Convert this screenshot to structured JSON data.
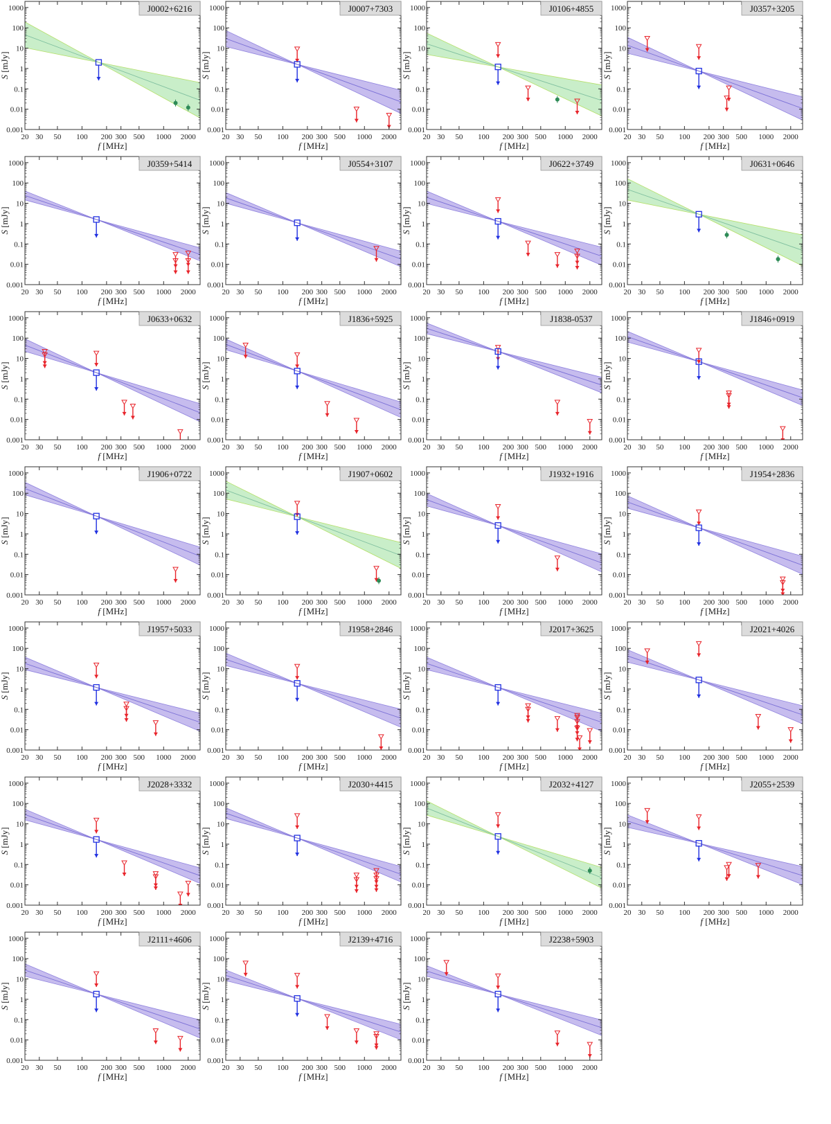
{
  "chart_data": {
    "type": "scatter",
    "layout": "grid",
    "axes": {
      "x_scale": "log",
      "y_scale": "log",
      "xlim": [
        20,
        2800
      ],
      "ylim": [
        0.001,
        2000
      ],
      "x_ticks": [
        20,
        30,
        50,
        100,
        200,
        300,
        500,
        1000,
        2000
      ],
      "x_tick_labels": [
        "20",
        "30",
        "50",
        "100",
        "200",
        "300",
        "500",
        "1000",
        "2000"
      ],
      "y_ticks": [
        0.001,
        0.01,
        0.1,
        1,
        10,
        100,
        1000
      ],
      "y_tick_labels": [
        "0.001",
        "0.01",
        "0.1",
        "1",
        "10",
        "100",
        "1000"
      ],
      "xlabel_var": "f",
      "xlabel_unit": "[MHz]",
      "ylabel_var": "S",
      "ylabel_unit": "[mJy]"
    },
    "colors": {
      "purple_fill": "#b3a6e8",
      "purple_edge": "#8f82de",
      "purple_line": "#7b70d6",
      "green_fill": "#b7e8b7",
      "green_edge": "#b5e06a",
      "green_line": "#7fbf9f",
      "limit_red": "#e8232a",
      "lofar_blue": "#1f2fe0",
      "detection_green": "#2e8b57",
      "label_bg": "#dcdcdc"
    },
    "panels": [
      {
        "name": "J0002+6216",
        "band": "green",
        "anchor": [
          160,
          2.0
        ],
        "slope_lo": -0.8,
        "slope_hi": -2.2,
        "limits": [],
        "detections": [
          [
            1400,
            0.02
          ],
          [
            2000,
            0.012
          ]
        ],
        "lofar": 2.0
      },
      {
        "name": "J0007+7303",
        "band": "purple",
        "anchor": [
          150,
          1.6
        ],
        "slope_lo": -1.0,
        "slope_hi": -1.9,
        "limits": [
          [
            150,
            9
          ],
          [
            800,
            0.01
          ],
          [
            2000,
            0.005
          ]
        ],
        "detections": [],
        "lofar": 1.6
      },
      {
        "name": "J0106+4855",
        "band": "green",
        "anchor": [
          150,
          1.2
        ],
        "slope_lo": -0.7,
        "slope_hi": -1.9,
        "limits": [
          [
            150,
            15
          ],
          [
            350,
            0.11
          ],
          [
            1400,
            0.025
          ]
        ],
        "detections": [
          [
            800,
            0.03
          ]
        ],
        "lofar": 1.2
      },
      {
        "name": "J0357+3205",
        "band": "purple",
        "anchor": [
          150,
          0.75
        ],
        "slope_lo": -1.0,
        "slope_hi": -1.9,
        "limits": [
          [
            35,
            30
          ],
          [
            150,
            12
          ],
          [
            330,
            0.035
          ],
          [
            350,
            0.11
          ]
        ],
        "detections": [],
        "lofar": 0.75
      },
      {
        "name": "J0359+5414",
        "band": "purple",
        "anchor": [
          150,
          1.6
        ],
        "slope_lo": -1.1,
        "slope_hi": -1.6,
        "limits": [
          [
            1400,
            0.03
          ],
          [
            1400,
            0.015
          ],
          [
            2000,
            0.035
          ],
          [
            2000,
            0.015
          ]
        ],
        "detections": [],
        "lofar": 1.6
      },
      {
        "name": "J0554+3107",
        "band": "purple",
        "anchor": [
          150,
          1.1
        ],
        "slope_lo": -1.1,
        "slope_hi": -1.7,
        "limits": [
          [
            1400,
            0.06
          ]
        ],
        "detections": [],
        "lofar": 1.1
      },
      {
        "name": "J0622+3749",
        "band": "purple",
        "anchor": [
          150,
          1.3
        ],
        "slope_lo": -1.0,
        "slope_hi": -1.7,
        "limits": [
          [
            150,
            15
          ],
          [
            350,
            0.11
          ],
          [
            800,
            0.03
          ],
          [
            1400,
            0.045
          ],
          [
            1400,
            0.025
          ]
        ],
        "detections": [],
        "lofar": 1.3
      },
      {
        "name": "J0631+0646",
        "band": "green",
        "anchor": [
          150,
          2.9
        ],
        "slope_lo": -0.8,
        "slope_hi": -2.0,
        "limits": [],
        "detections": [
          [
            330,
            0.28
          ],
          [
            1400,
            0.018
          ]
        ],
        "lofar": 2.9
      },
      {
        "name": "J0633+0632",
        "band": "purple",
        "anchor": [
          150,
          2.0
        ],
        "slope_lo": -1.2,
        "slope_hi": -1.9,
        "limits": [
          [
            35,
            22
          ],
          [
            35,
            15
          ],
          [
            150,
            18
          ],
          [
            330,
            0.07
          ],
          [
            420,
            0.045
          ],
          [
            1600,
            0.0025
          ]
        ],
        "detections": [],
        "lofar": 2.0
      },
      {
        "name": "J1836+5925",
        "band": "purple",
        "anchor": [
          150,
          2.4
        ],
        "slope_lo": -1.2,
        "slope_hi": -1.8,
        "limits": [
          [
            35,
            45
          ],
          [
            150,
            15
          ],
          [
            350,
            0.06
          ],
          [
            800,
            0.009
          ]
        ],
        "detections": [],
        "lofar": 2.4
      },
      {
        "name": "J1838-0537",
        "band": "purple",
        "anchor": [
          150,
          22
        ],
        "slope_lo": -1.0,
        "slope_hi": -1.6,
        "limits": [
          [
            150,
            35
          ],
          [
            800,
            0.07
          ],
          [
            2000,
            0.008
          ]
        ],
        "detections": [],
        "lofar": 22
      },
      {
        "name": "J1846+0919",
        "band": "purple",
        "anchor": [
          150,
          7
        ],
        "slope_lo": -1.1,
        "slope_hi": -1.7,
        "limits": [
          [
            150,
            25
          ],
          [
            350,
            0.2
          ],
          [
            350,
            0.15
          ],
          [
            1600,
            0.0035
          ]
        ],
        "detections": [],
        "lofar": 7
      },
      {
        "name": "J1906+0722",
        "band": "purple",
        "anchor": [
          150,
          7.5
        ],
        "slope_lo": -1.2,
        "slope_hi": -1.9,
        "limits": [
          [
            1400,
            0.018
          ]
        ],
        "detections": [],
        "lofar": 7.5
      },
      {
        "name": "J1907+0602",
        "band": "green",
        "anchor": [
          150,
          7.0
        ],
        "slope_lo": -1.0,
        "slope_hi": -2.0,
        "limits": [
          [
            150,
            32
          ],
          [
            1400,
            0.02
          ]
        ],
        "detections": [
          [
            1500,
            0.005
          ]
        ],
        "lofar": 7.0
      },
      {
        "name": "J1932+1916",
        "band": "purple",
        "anchor": [
          150,
          2.6
        ],
        "slope_lo": -1.1,
        "slope_hi": -1.8,
        "limits": [
          [
            150,
            22
          ],
          [
            800,
            0.065
          ]
        ],
        "detections": [],
        "lofar": 2.6
      },
      {
        "name": "J1954+2836",
        "band": "purple",
        "anchor": [
          150,
          2.0
        ],
        "slope_lo": -1.1,
        "slope_hi": -1.8,
        "limits": [
          [
            150,
            12
          ],
          [
            1600,
            0.006
          ],
          [
            1600,
            0.004
          ]
        ],
        "detections": [],
        "lofar": 2.0
      },
      {
        "name": "J1957+5033",
        "band": "purple",
        "anchor": [
          150,
          1.2
        ],
        "slope_lo": -1.0,
        "slope_hi": -1.7,
        "limits": [
          [
            150,
            15
          ],
          [
            350,
            0.18
          ],
          [
            350,
            0.11
          ],
          [
            800,
            0.022
          ]
        ],
        "detections": [],
        "lofar": 1.2
      },
      {
        "name": "J1958+2846",
        "band": "purple",
        "anchor": [
          150,
          1.9
        ],
        "slope_lo": -1.0,
        "slope_hi": -1.7,
        "limits": [
          [
            150,
            13
          ],
          [
            1600,
            0.0045
          ]
        ],
        "detections": [],
        "lofar": 1.9
      },
      {
        "name": "J2017+3625",
        "band": "purple",
        "anchor": [
          150,
          1.2
        ],
        "slope_lo": -1.0,
        "slope_hi": -1.7,
        "limits": [
          [
            350,
            0.15
          ],
          [
            350,
            0.1
          ],
          [
            800,
            0.035
          ],
          [
            1400,
            0.05
          ],
          [
            1400,
            0.04
          ],
          [
            1400,
            0.025
          ],
          [
            1400,
            0.012
          ],
          [
            1500,
            0.004
          ],
          [
            2000,
            0.009
          ]
        ],
        "detections": [],
        "lofar": 1.2
      },
      {
        "name": "J2021+4026",
        "band": "purple",
        "anchor": [
          150,
          2.8
        ],
        "slope_lo": -1.0,
        "slope_hi": -1.7,
        "limits": [
          [
            35,
            75
          ],
          [
            150,
            170
          ],
          [
            800,
            0.045
          ],
          [
            2000,
            0.01
          ]
        ],
        "detections": [],
        "lofar": 2.8
      },
      {
        "name": "J2028+3332",
        "band": "purple",
        "anchor": [
          150,
          1.7
        ],
        "slope_lo": -1.1,
        "slope_hi": -1.7,
        "limits": [
          [
            150,
            15
          ],
          [
            330,
            0.12
          ],
          [
            800,
            0.035
          ],
          [
            800,
            0.025
          ],
          [
            1600,
            0.0035
          ],
          [
            2000,
            0.012
          ]
        ],
        "detections": [],
        "lofar": 1.7
      },
      {
        "name": "J2030+4415",
        "band": "purple",
        "anchor": [
          150,
          2.0
        ],
        "slope_lo": -1.1,
        "slope_hi": -1.7,
        "limits": [
          [
            150,
            25
          ],
          [
            800,
            0.03
          ],
          [
            800,
            0.018
          ],
          [
            1400,
            0.05
          ],
          [
            1400,
            0.03
          ],
          [
            1400,
            0.02
          ]
        ],
        "detections": [],
        "lofar": 2.0
      },
      {
        "name": "J2032+4127",
        "band": "green",
        "anchor": [
          150,
          2.4
        ],
        "slope_lo": -1.2,
        "slope_hi": -2.0,
        "limits": [
          [
            150,
            28
          ]
        ],
        "detections": [
          [
            2000,
            0.05
          ]
        ],
        "lofar": 2.4
      },
      {
        "name": "J2055+2539",
        "band": "purple",
        "anchor": [
          150,
          1.1
        ],
        "slope_lo": -0.9,
        "slope_hi": -1.6,
        "limits": [
          [
            35,
            45
          ],
          [
            150,
            22
          ],
          [
            330,
            0.07
          ],
          [
            350,
            0.1
          ],
          [
            800,
            0.09
          ]
        ],
        "detections": [],
        "lofar": 1.1
      },
      {
        "name": "J2111+4606",
        "band": "purple",
        "anchor": [
          150,
          1.8
        ],
        "slope_lo": -1.0,
        "slope_hi": -1.7,
        "limits": [
          [
            150,
            18
          ],
          [
            800,
            0.028
          ],
          [
            1600,
            0.012
          ]
        ],
        "detections": [],
        "lofar": 1.8
      },
      {
        "name": "J2139+4716",
        "band": "purple",
        "anchor": [
          150,
          1.1
        ],
        "slope_lo": -1.0,
        "slope_hi": -1.6,
        "limits": [
          [
            35,
            60
          ],
          [
            150,
            15
          ],
          [
            350,
            0.14
          ],
          [
            800,
            0.028
          ],
          [
            1400,
            0.02
          ],
          [
            1400,
            0.015
          ]
        ],
        "detections": [],
        "lofar": 1.1
      },
      {
        "name": "J2238+5903",
        "band": "purple",
        "anchor": [
          150,
          1.8
        ],
        "slope_lo": -1.0,
        "slope_hi": -1.6,
        "limits": [
          [
            35,
            65
          ],
          [
            150,
            14
          ],
          [
            800,
            0.022
          ],
          [
            2000,
            0.006
          ]
        ],
        "detections": [],
        "lofar": 1.8
      }
    ]
  }
}
